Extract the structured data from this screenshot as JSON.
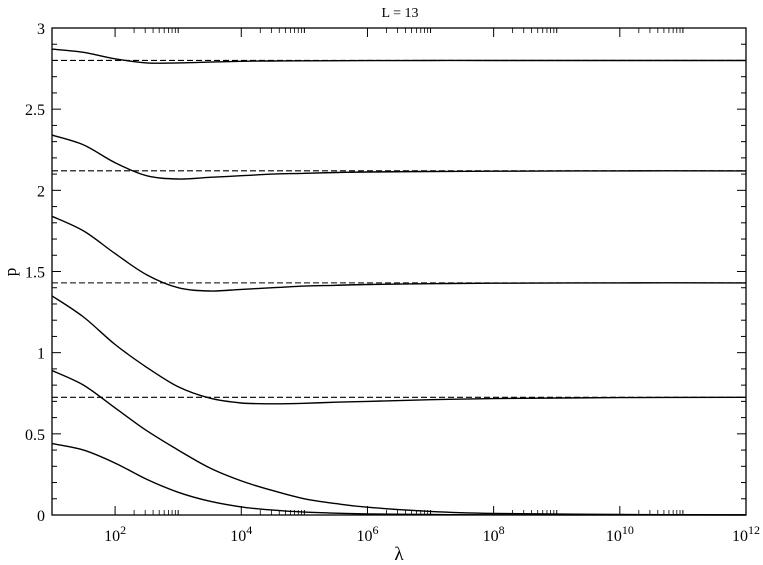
{
  "chart_data": {
    "type": "line",
    "title": "L = 13",
    "xlabel": "λ",
    "ylabel": "p",
    "xscale": "log10",
    "xlim": [
      10,
      1000000000000
    ],
    "ylim": [
      0,
      3
    ],
    "grid": false,
    "legend": "none",
    "x_tick_labels": [
      {
        "base": "10",
        "exp": "2",
        "value": 100
      },
      {
        "base": "10",
        "exp": "4",
        "value": 10000
      },
      {
        "base": "10",
        "exp": "6",
        "value": 1000000
      },
      {
        "base": "10",
        "exp": "8",
        "value": 100000000
      },
      {
        "base": "10",
        "exp": "10",
        "value": 10000000000
      },
      {
        "base": "10",
        "exp": "12",
        "value": 1000000000000
      }
    ],
    "y_tick_labels": [
      "0",
      "0.5",
      "1",
      "1.5",
      "2",
      "2.5",
      "3"
    ],
    "y_tick_values": [
      0,
      0.5,
      1,
      1.5,
      2,
      2.5,
      3
    ],
    "reference_lines": [
      {
        "y": 0.725,
        "style": "dashed"
      },
      {
        "y": 1.43,
        "style": "dashed"
      },
      {
        "y": 2.12,
        "style": "dashed"
      },
      {
        "y": 2.8,
        "style": "dashed"
      }
    ],
    "series": [
      {
        "x": [
          10,
          31.6,
          100,
          316,
          1000,
          3160,
          10000,
          31600,
          100000,
          316000,
          1000000,
          10000000,
          100000000,
          10000000000,
          1000000000000
        ],
        "y": [
          0.44,
          0.4,
          0.32,
          0.22,
          0.14,
          0.085,
          0.05,
          0.03,
          0.018,
          0.011,
          0.007,
          0.003,
          0.0015,
          0.0005,
          0.0002
        ]
      },
      {
        "x": [
          10,
          31.6,
          100,
          316,
          1000,
          3160,
          10000,
          31600,
          100000,
          316000,
          1000000,
          10000000,
          100000000,
          10000000000,
          1000000000000
        ],
        "y": [
          0.89,
          0.8,
          0.66,
          0.52,
          0.4,
          0.29,
          0.21,
          0.15,
          0.1,
          0.07,
          0.048,
          0.022,
          0.01,
          0.003,
          0.001
        ]
      },
      {
        "x": [
          10,
          31.6,
          100,
          316,
          1000,
          3160,
          10000,
          31600,
          100000,
          316000,
          1000000,
          10000000,
          100000000,
          10000000000,
          1000000000000
        ],
        "y": [
          1.35,
          1.22,
          1.05,
          0.91,
          0.79,
          0.72,
          0.69,
          0.685,
          0.688,
          0.695,
          0.7,
          0.71,
          0.717,
          0.723,
          0.725
        ]
      },
      {
        "x": [
          10,
          31.6,
          100,
          316,
          1000,
          3160,
          10000,
          31600,
          100000,
          316000,
          1000000,
          10000000,
          100000000,
          10000000000,
          1000000000000
        ],
        "y": [
          1.84,
          1.75,
          1.61,
          1.48,
          1.4,
          1.38,
          1.39,
          1.4,
          1.41,
          1.415,
          1.42,
          1.425,
          1.428,
          1.43,
          1.43
        ]
      },
      {
        "x": [
          10,
          31.6,
          100,
          316,
          1000,
          3160,
          10000,
          31600,
          100000,
          316000,
          1000000,
          10000000,
          100000000,
          10000000000,
          1000000000000
        ],
        "y": [
          2.34,
          2.28,
          2.17,
          2.09,
          2.07,
          2.08,
          2.09,
          2.1,
          2.105,
          2.11,
          2.113,
          2.116,
          2.118,
          2.12,
          2.12
        ]
      },
      {
        "x": [
          10,
          31.6,
          100,
          316,
          1000,
          3160,
          10000,
          31600,
          100000,
          1000000,
          10000000,
          100000000,
          10000000000,
          1000000000000
        ],
        "y": [
          2.87,
          2.85,
          2.81,
          2.785,
          2.785,
          2.79,
          2.795,
          2.797,
          2.798,
          2.799,
          2.8,
          2.8,
          2.8,
          2.8
        ]
      }
    ]
  }
}
